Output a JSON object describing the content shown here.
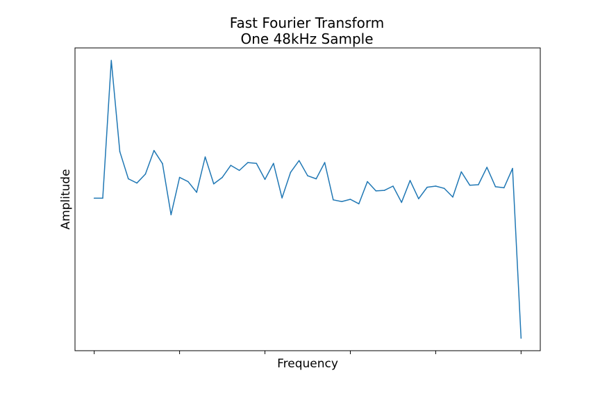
{
  "chart_data": {
    "type": "line",
    "title_line1": "Fast Fourier Transform",
    "title_line2": "One 48kHz Sample",
    "xlabel": "Frequency",
    "ylabel": "Amplitude",
    "x_ticks": 6,
    "x_tick_labels_visible": false,
    "y_tick_labels_visible": false,
    "grid": false,
    "line_color": "#1f77b4",
    "x": [
      0,
      1,
      2,
      3,
      4,
      5,
      6,
      7,
      8,
      9,
      10,
      11,
      12,
      13,
      14,
      15,
      16,
      17,
      18,
      19,
      20,
      21,
      22,
      23,
      24,
      25,
      26,
      27,
      28,
      29,
      30,
      31,
      32,
      33,
      34,
      35,
      36,
      37,
      38,
      39,
      40,
      41,
      42,
      43,
      44,
      45,
      46,
      47,
      48,
      49,
      50
    ],
    "values": [
      0.502,
      0.502,
      0.993,
      0.668,
      0.571,
      0.556,
      0.588,
      0.672,
      0.625,
      0.443,
      0.576,
      0.561,
      0.523,
      0.649,
      0.553,
      0.576,
      0.619,
      0.601,
      0.629,
      0.626,
      0.569,
      0.626,
      0.503,
      0.594,
      0.636,
      0.582,
      0.571,
      0.629,
      0.496,
      0.49,
      0.498,
      0.482,
      0.561,
      0.528,
      0.53,
      0.545,
      0.487,
      0.565,
      0.5,
      0.541,
      0.545,
      0.537,
      0.506,
      0.596,
      0.548,
      0.55,
      0.612,
      0.543,
      0.539,
      0.608,
      0.003
    ]
  }
}
